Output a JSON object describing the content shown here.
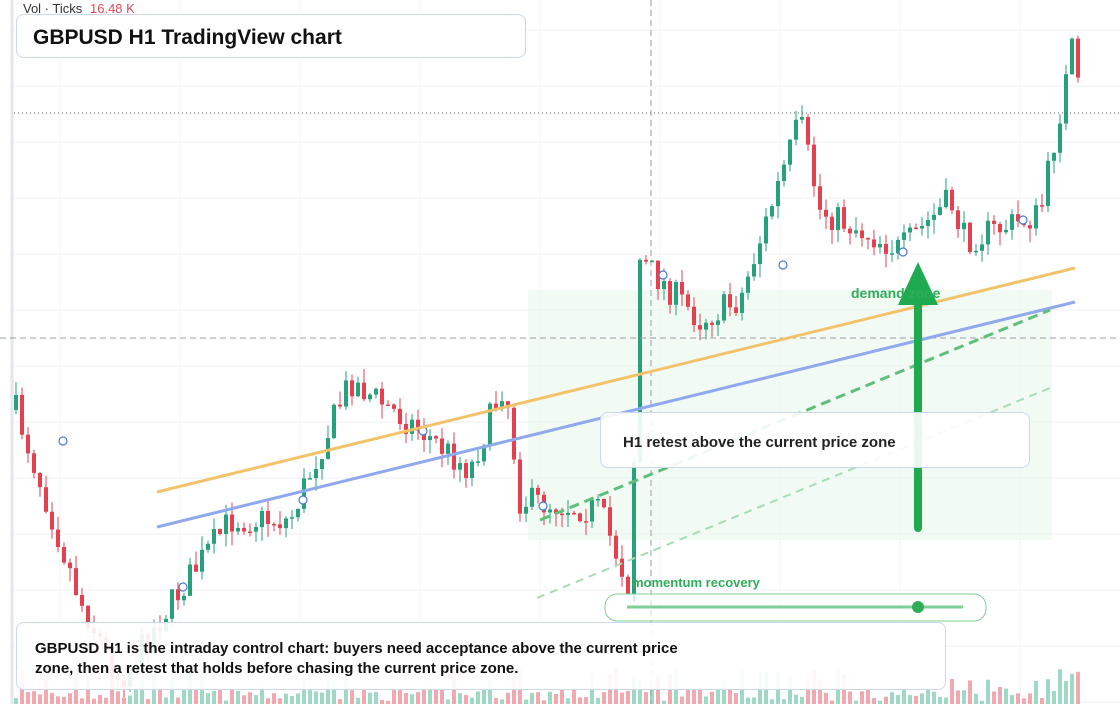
{
  "header": {
    "volume_label": "Vol · Ticks",
    "volume_value": "16.48 K",
    "title": "GBPUSD H1 TradingView chart"
  },
  "annotations": {
    "retest": "H1 retest above the current price zone",
    "demand": "demand zone",
    "momentum": "momentum recovery"
  },
  "caption": "GBPUSD H1 is the intraday control chart: buyers need acceptance above the current price zone, then a retest that holds before chasing the current price zone."
}
